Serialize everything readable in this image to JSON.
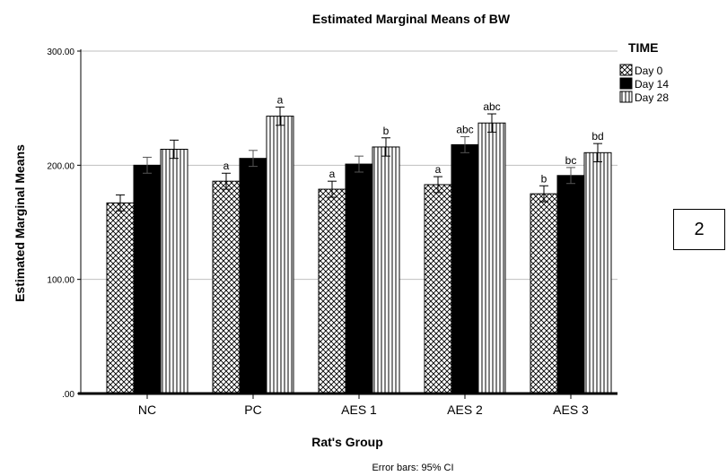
{
  "chart_data": {
    "type": "bar",
    "title": "Estimated Marginal Means of BW",
    "xlabel": "Rat's Group",
    "ylabel": "Estimated Marginal Means",
    "categories": [
      "NC",
      "PC",
      "AES 1",
      "AES 2",
      "AES 3"
    ],
    "ylim": [
      0,
      300
    ],
    "y_ticks": [
      0,
      100,
      200,
      300
    ],
    "y_tick_labels": [
      ".00",
      "100.00",
      "200.00",
      "300.00"
    ],
    "grid": "horizontal",
    "legend_title": "TIME",
    "legend_position": "top-right",
    "series": [
      {
        "name": "Day 0",
        "pattern": "crosshatch",
        "values": [
          167,
          186,
          179,
          183,
          175
        ],
        "error": [
          7,
          7,
          7,
          7,
          7
        ],
        "annotations": [
          "",
          "a",
          "a",
          "a",
          "b"
        ]
      },
      {
        "name": "Day 14",
        "pattern": "solid",
        "values": [
          200,
          206,
          201,
          218,
          191
        ],
        "error": [
          7,
          7,
          7,
          7,
          7
        ],
        "annotations": [
          "",
          "",
          "",
          "abc",
          "bc"
        ]
      },
      {
        "name": "Day 28",
        "pattern": "vertical-stripes",
        "values": [
          214,
          243,
          216,
          237,
          211
        ],
        "error": [
          8,
          8,
          8,
          8,
          8
        ],
        "annotations": [
          "",
          "a",
          "b",
          "abc",
          "bd"
        ]
      }
    ],
    "footnote": "Error bars: 95% CI"
  },
  "side_box": {
    "label": "2"
  },
  "colors": {
    "bar_solid": "#000000",
    "grid": "#bfbfbf",
    "axis": "#000000"
  }
}
